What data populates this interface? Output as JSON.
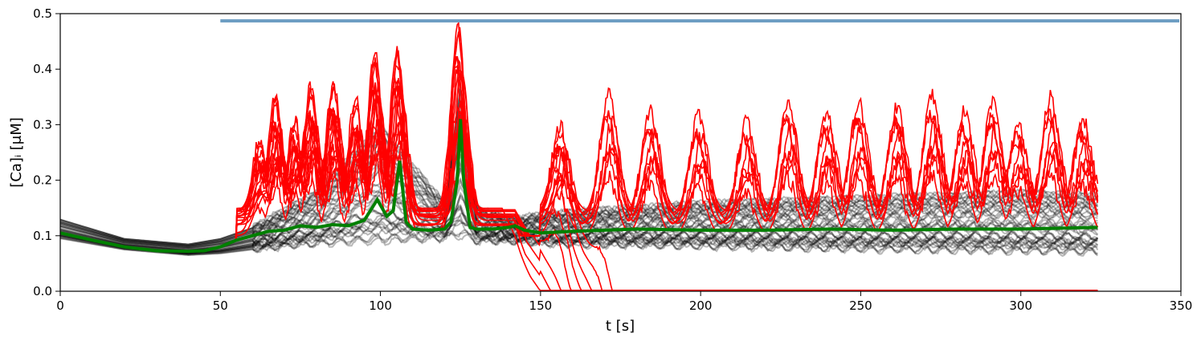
{
  "chart_data": {
    "type": "line",
    "xlabel": "t [s]",
    "ylabel": "[Ca]ᵢ [μM]",
    "xlim": [
      0,
      350
    ],
    "ylim": [
      0,
      0.5
    ],
    "xticks": [
      "0",
      "50",
      "100",
      "150",
      "200",
      "250",
      "300",
      "350"
    ],
    "yticks": [
      "0.0",
      "0.1",
      "0.2",
      "0.3",
      "0.4",
      "0.5"
    ],
    "grid": false,
    "legend": "none",
    "colors": {
      "individual_cells": "#000000",
      "oscillating_cells": "#ff0000",
      "mean": "#008000",
      "stimulus_bar": "#6e9ec3"
    },
    "stimulus_bar": {
      "x": [
        50,
        350
      ],
      "y": 0.487
    },
    "series": [
      {
        "role": "mean",
        "x": [
          0,
          10,
          20,
          30,
          40,
          45,
          50,
          55,
          60,
          65,
          70,
          75,
          80,
          85,
          90,
          95,
          99,
          102,
          104,
          106,
          108,
          110,
          115,
          120,
          122,
          124,
          125,
          126,
          128,
          130,
          135,
          140,
          142,
          145,
          150,
          160,
          170,
          180,
          200,
          220,
          240,
          260,
          280,
          300,
          324
        ],
        "y": [
          0.105,
          0.092,
          0.08,
          0.073,
          0.072,
          0.073,
          0.08,
          0.092,
          0.1,
          0.108,
          0.11,
          0.118,
          0.115,
          0.12,
          0.118,
          0.128,
          0.165,
          0.135,
          0.145,
          0.235,
          0.125,
          0.112,
          0.11,
          0.112,
          0.125,
          0.2,
          0.31,
          0.2,
          0.115,
          0.112,
          0.112,
          0.115,
          0.118,
          0.11,
          0.105,
          0.108,
          0.11,
          0.112,
          0.11,
          0.11,
          0.112,
          0.11,
          0.112,
          0.112,
          0.115
        ]
      },
      {
        "role": "individual_cells_envelope_upper",
        "x": [
          0,
          20,
          40,
          50,
          60,
          80,
          100,
          120,
          125,
          130,
          142,
          150,
          200,
          250,
          300,
          324
        ],
        "y": [
          0.13,
          0.095,
          0.085,
          0.095,
          0.115,
          0.18,
          0.3,
          0.16,
          0.37,
          0.15,
          0.13,
          0.14,
          0.16,
          0.17,
          0.18,
          0.175
        ]
      },
      {
        "role": "individual_cells_envelope_lower",
        "x": [
          0,
          20,
          40,
          50,
          60,
          80,
          100,
          120,
          125,
          130,
          142,
          150,
          200,
          250,
          300,
          324
        ],
        "y": [
          0.095,
          0.075,
          0.065,
          0.068,
          0.075,
          0.085,
          0.09,
          0.095,
          0.1,
          0.09,
          0.09,
          0.085,
          0.08,
          0.075,
          0.072,
          0.07
        ]
      },
      {
        "role": "oscillating_cells_peaks",
        "x": [
          63,
          68,
          74,
          79,
          86,
          93,
          99,
          106,
          125,
          157,
          172,
          185,
          200,
          215,
          228,
          240,
          250,
          262,
          273,
          283,
          292,
          300,
          310,
          320
        ],
        "y": [
          0.27,
          0.35,
          0.31,
          0.37,
          0.38,
          0.35,
          0.43,
          0.44,
          0.485,
          0.3,
          0.37,
          0.34,
          0.33,
          0.32,
          0.36,
          0.34,
          0.36,
          0.35,
          0.37,
          0.34,
          0.36,
          0.32,
          0.37,
          0.33
        ]
      }
    ]
  }
}
